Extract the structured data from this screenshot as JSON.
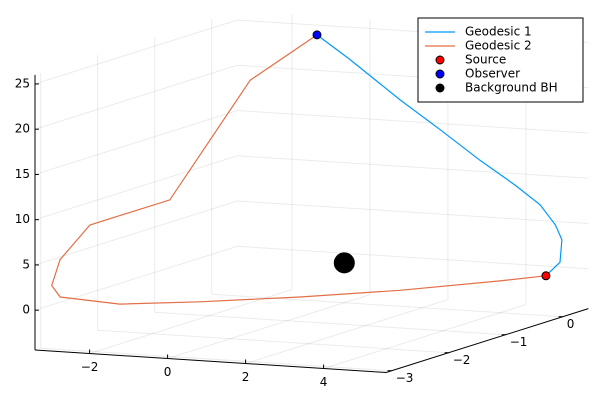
{
  "chart_data": {
    "type": "line3d",
    "xlim": [
      -3.4,
      5.6
    ],
    "ylim": [
      -3.1,
      0.45
    ],
    "zlim": [
      -4.4,
      26
    ],
    "xticks": [
      {
        "value": -2,
        "label": "−2"
      },
      0,
      2,
      4
    ],
    "yticks": [
      {
        "value": -3,
        "label": "−3"
      },
      {
        "value": -2,
        "label": "−2"
      },
      {
        "value": -1,
        "label": "−1"
      },
      0
    ],
    "zticks": [
      0,
      5,
      10,
      15,
      20,
      25
    ],
    "grid": true,
    "legend": "top right",
    "series": [
      {
        "name": "Geodesic 1",
        "color": "#009af9",
        "mode": "line",
        "x": [
          -0.7,
          0.15,
          1.43,
          2.46,
          3.48,
          4.38,
          5.02,
          5.41,
          5.58,
          5.53,
          5.17
        ],
        "y": [
          0,
          0,
          0,
          0,
          0,
          0,
          0,
          0,
          0,
          0,
          0
        ],
        "z": [
          25.0,
          22.5,
          18.4,
          15.4,
          12.3,
          9.8,
          7.8,
          5.7,
          4.1,
          1.6,
          0.0
        ]
      },
      {
        "name": "Geodesic 2",
        "color": "#e26f46",
        "mode": "line",
        "x": [
          -0.7,
          -1.2,
          -1.8,
          -2.3,
          -2.8,
          -3.0,
          -2.9,
          -2.0,
          -1.0,
          0.5,
          2.0,
          3.8,
          5.17
        ],
        "y": [
          0,
          -0.83,
          -1.83,
          -2.89,
          -3.07,
          -3.08,
          -3.0,
          -2.57,
          -1.85,
          -1.12,
          -0.39,
          0.13,
          0
        ],
        "z": [
          25.0,
          21.5,
          10.1,
          9.3,
          5.7,
          2.8,
          1.4,
          0.0,
          -0.9,
          -1.4,
          -1.7,
          -1.2,
          0.0
        ]
      },
      {
        "name": "Source",
        "color": "#ff0000",
        "mode": "marker",
        "size": 4,
        "x": [
          5.17
        ],
        "y": [
          0
        ],
        "z": [
          0.0
        ]
      },
      {
        "name": "Observer",
        "color": "#0000ff",
        "mode": "marker",
        "size": 4,
        "x": [
          -0.7
        ],
        "y": [
          0
        ],
        "z": [
          25.0
        ]
      },
      {
        "name": "Background BH",
        "color": "#000000",
        "mode": "marker",
        "size": 10,
        "x": [
          0
        ],
        "y": [
          0
        ],
        "z": [
          0
        ]
      }
    ]
  }
}
